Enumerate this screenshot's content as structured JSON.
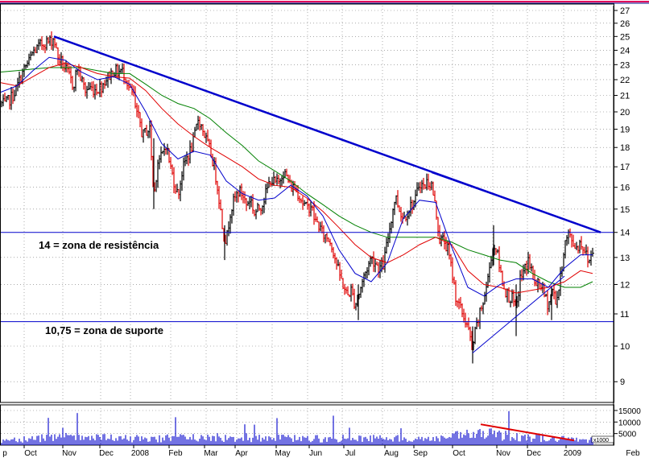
{
  "chart_data": {
    "type": "candlestick",
    "price_scale": {
      "min": 9,
      "max": 27,
      "scale": "log",
      "ticks": [
        9,
        10,
        11,
        12,
        13,
        14,
        15,
        16,
        17,
        18,
        19,
        20,
        21,
        22,
        23,
        24,
        25,
        26,
        27
      ]
    },
    "volume_scale": {
      "ticks": [
        15000,
        10000,
        5000
      ],
      "tick_labels": [
        "15000",
        "10000",
        "5000"
      ],
      "unit_label": "x1000"
    },
    "x_labels": [
      "p",
      "Oct",
      "Nov",
      "Dec",
      "2008",
      "Feb",
      "Mar",
      "Apr",
      "May",
      "Jun",
      "Jul",
      "Aug",
      "Sep",
      "Oct",
      "Nov",
      "Dec",
      "2009",
      "Feb"
    ],
    "grid": true,
    "series": {
      "price": [
        [
          0,
          20.5
        ],
        [
          5,
          20.4
        ],
        [
          10,
          20.7
        ],
        [
          15,
          21.0
        ],
        [
          20,
          21.5
        ],
        [
          25,
          22.2
        ],
        [
          30,
          22.8
        ],
        [
          35,
          23.2
        ],
        [
          40,
          23.9
        ],
        [
          45,
          24.1
        ],
        [
          50,
          24.4
        ],
        [
          55,
          24.6
        ],
        [
          60,
          24.6
        ],
        [
          66,
          24.9
        ],
        [
          70,
          23.6
        ],
        [
          75,
          23.2
        ],
        [
          80,
          22.7
        ],
        [
          85,
          22.2
        ],
        [
          90,
          21.6
        ],
        [
          95,
          22.8
        ],
        [
          100,
          22.0
        ],
        [
          105,
          21.3
        ],
        [
          110,
          21.5
        ],
        [
          115,
          21.4
        ],
        [
          120,
          21.4
        ],
        [
          125,
          21.6
        ],
        [
          130,
          22.0
        ],
        [
          135,
          22.3
        ],
        [
          140,
          22.6
        ],
        [
          145,
          22.5
        ],
        [
          150,
          22.6
        ],
        [
          155,
          22.2
        ],
        [
          160,
          21.3
        ],
        [
          165,
          21.0
        ],
        [
          168,
          19.8
        ],
        [
          172,
          19.6
        ],
        [
          176,
          18.6
        ],
        [
          180,
          18.9
        ],
        [
          185,
          19.0
        ],
        [
          190,
          15.5
        ],
        [
          195,
          17.3
        ],
        [
          200,
          17.5
        ],
        [
          205,
          18.2
        ],
        [
          210,
          17.1
        ],
        [
          215,
          16.3
        ],
        [
          220,
          15.6
        ],
        [
          225,
          16.7
        ],
        [
          230,
          17.4
        ],
        [
          235,
          17.8
        ],
        [
          240,
          18.4
        ],
        [
          245,
          19.6
        ],
        [
          250,
          19.1
        ],
        [
          255,
          18.4
        ],
        [
          260,
          17.8
        ],
        [
          265,
          17.0
        ],
        [
          270,
          15.8
        ],
        [
          275,
          14.3
        ],
        [
          280,
          13.6
        ],
        [
          285,
          14.9
        ],
        [
          290,
          15.4
        ],
        [
          295,
          15.8
        ],
        [
          300,
          15.7
        ],
        [
          305,
          15.2
        ],
        [
          310,
          15.5
        ],
        [
          315,
          14.8
        ],
        [
          320,
          15.0
        ],
        [
          325,
          15.3
        ],
        [
          330,
          15.8
        ],
        [
          335,
          16.4
        ],
        [
          340,
          16.2
        ],
        [
          345,
          16.2
        ],
        [
          350,
          16.8
        ],
        [
          355,
          16.5
        ],
        [
          360,
          16.0
        ],
        [
          365,
          16.0
        ],
        [
          370,
          15.7
        ],
        [
          375,
          15.3
        ],
        [
          380,
          15.0
        ],
        [
          385,
          15.2
        ],
        [
          390,
          14.5
        ],
        [
          395,
          14.3
        ],
        [
          400,
          13.9
        ],
        [
          405,
          13.8
        ],
        [
          410,
          13.6
        ],
        [
          415,
          13.0
        ],
        [
          420,
          12.4
        ],
        [
          425,
          12.0
        ],
        [
          430,
          11.6
        ],
        [
          435,
          11.8
        ],
        [
          440,
          11.3
        ],
        [
          445,
          11.7
        ],
        [
          450,
          12.2
        ],
        [
          455,
          12.6
        ],
        [
          460,
          13.0
        ],
        [
          465,
          12.8
        ],
        [
          470,
          12.6
        ],
        [
          475,
          12.7
        ],
        [
          480,
          13.6
        ],
        [
          485,
          14.6
        ],
        [
          490,
          15.6
        ],
        [
          495,
          15.0
        ],
        [
          500,
          14.6
        ],
        [
          505,
          14.9
        ],
        [
          510,
          15.2
        ],
        [
          515,
          15.4
        ],
        [
          520,
          16.3
        ],
        [
          525,
          16.0
        ],
        [
          530,
          16.3
        ],
        [
          535,
          16.1
        ],
        [
          540,
          15.0
        ],
        [
          545,
          13.7
        ],
        [
          550,
          13.7
        ],
        [
          555,
          13.3
        ],
        [
          560,
          12.5
        ],
        [
          565,
          11.6
        ],
        [
          570,
          11.2
        ],
        [
          575,
          10.9
        ],
        [
          580,
          10.6
        ],
        [
          585,
          9.9
        ],
        [
          590,
          10.5
        ],
        [
          595,
          11.0
        ],
        [
          600,
          11.5
        ],
        [
          605,
          12.2
        ],
        [
          610,
          13.3
        ],
        [
          615,
          13.4
        ],
        [
          620,
          12.5
        ],
        [
          625,
          11.9
        ],
        [
          630,
          11.6
        ],
        [
          635,
          11.5
        ],
        [
          640,
          11.1
        ],
        [
          645,
          12.2
        ],
        [
          650,
          12.5
        ],
        [
          655,
          12.9
        ],
        [
          660,
          12.4
        ],
        [
          665,
          11.9
        ],
        [
          670,
          12.1
        ],
        [
          675,
          11.6
        ],
        [
          680,
          11.3
        ],
        [
          685,
          11.8
        ],
        [
          690,
          11.4
        ],
        [
          695,
          12.2
        ],
        [
          700,
          13.5
        ],
        [
          705,
          13.9
        ],
        [
          710,
          13.6
        ],
        [
          715,
          13.4
        ],
        [
          720,
          13.6
        ],
        [
          725,
          13.3
        ],
        [
          730,
          12.8
        ],
        [
          735,
          13.3
        ]
      ],
      "sma_blue": [
        [
          0,
          21.2
        ],
        [
          20,
          21.6
        ],
        [
          40,
          22.6
        ],
        [
          60,
          23.5
        ],
        [
          80,
          23.3
        ],
        [
          100,
          22.5
        ],
        [
          120,
          22.0
        ],
        [
          140,
          22.2
        ],
        [
          160,
          21.7
        ],
        [
          180,
          20.0
        ],
        [
          200,
          18.2
        ],
        [
          220,
          17.4
        ],
        [
          240,
          17.8
        ],
        [
          260,
          17.6
        ],
        [
          280,
          16.3
        ],
        [
          300,
          15.7
        ],
        [
          320,
          15.4
        ],
        [
          340,
          15.5
        ],
        [
          360,
          16.1
        ],
        [
          380,
          15.6
        ],
        [
          400,
          14.7
        ],
        [
          420,
          13.3
        ],
        [
          440,
          12.4
        ],
        [
          460,
          12.1
        ],
        [
          480,
          12.8
        ],
        [
          500,
          14.6
        ],
        [
          520,
          15.4
        ],
        [
          540,
          15.3
        ],
        [
          560,
          13.4
        ],
        [
          580,
          11.9
        ],
        [
          600,
          11.6
        ],
        [
          620,
          12.0
        ],
        [
          640,
          12.2
        ],
        [
          660,
          12.2
        ],
        [
          680,
          11.9
        ],
        [
          700,
          12.6
        ],
        [
          720,
          13.1
        ],
        [
          735,
          13.1
        ]
      ],
      "sma_red": [
        [
          0,
          21.8
        ],
        [
          20,
          21.6
        ],
        [
          40,
          22.2
        ],
        [
          60,
          22.8
        ],
        [
          80,
          23.1
        ],
        [
          100,
          22.8
        ],
        [
          120,
          22.4
        ],
        [
          140,
          22.2
        ],
        [
          160,
          22.1
        ],
        [
          180,
          21.3
        ],
        [
          200,
          20.2
        ],
        [
          220,
          19.3
        ],
        [
          240,
          18.6
        ],
        [
          260,
          18.0
        ],
        [
          280,
          17.5
        ],
        [
          300,
          17.0
        ],
        [
          320,
          16.4
        ],
        [
          340,
          16.1
        ],
        [
          360,
          16.0
        ],
        [
          380,
          15.5
        ],
        [
          400,
          14.9
        ],
        [
          420,
          14.2
        ],
        [
          440,
          13.5
        ],
        [
          460,
          13.0
        ],
        [
          480,
          12.8
        ],
        [
          500,
          13.1
        ],
        [
          520,
          13.5
        ],
        [
          540,
          13.8
        ],
        [
          560,
          13.5
        ],
        [
          580,
          12.5
        ],
        [
          600,
          12.0
        ],
        [
          620,
          11.9
        ],
        [
          640,
          11.7
        ],
        [
          660,
          11.8
        ],
        [
          680,
          11.9
        ],
        [
          700,
          12.1
        ],
        [
          720,
          12.5
        ],
        [
          735,
          12.4
        ]
      ],
      "sma_green": [
        [
          0,
          22.5
        ],
        [
          20,
          22.6
        ],
        [
          40,
          22.7
        ],
        [
          60,
          22.8
        ],
        [
          80,
          22.8
        ],
        [
          100,
          22.8
        ],
        [
          120,
          22.6
        ],
        [
          140,
          22.4
        ],
        [
          160,
          22.4
        ],
        [
          180,
          21.7
        ],
        [
          200,
          21.0
        ],
        [
          220,
          20.5
        ],
        [
          240,
          20.2
        ],
        [
          260,
          19.6
        ],
        [
          280,
          18.8
        ],
        [
          300,
          18.1
        ],
        [
          320,
          17.3
        ],
        [
          340,
          16.8
        ],
        [
          360,
          16.3
        ],
        [
          380,
          15.7
        ],
        [
          400,
          15.2
        ],
        [
          420,
          14.7
        ],
        [
          440,
          14.3
        ],
        [
          460,
          14.0
        ],
        [
          480,
          13.8
        ],
        [
          500,
          13.8
        ],
        [
          520,
          13.8
        ],
        [
          540,
          13.8
        ],
        [
          560,
          13.6
        ],
        [
          580,
          13.3
        ],
        [
          600,
          13.1
        ],
        [
          620,
          12.9
        ],
        [
          640,
          12.8
        ],
        [
          660,
          12.4
        ],
        [
          680,
          12.1
        ],
        [
          700,
          11.9
        ],
        [
          720,
          11.9
        ],
        [
          735,
          12.1
        ]
      ],
      "volume_profile": [
        [
          0,
          2200
        ],
        [
          60,
          3500
        ],
        [
          160,
          2800
        ],
        [
          250,
          3200
        ],
        [
          300,
          3300
        ],
        [
          400,
          2700
        ],
        [
          470,
          3000
        ],
        [
          540,
          2700
        ],
        [
          590,
          4800
        ],
        [
          640,
          4100
        ],
        [
          690,
          2600
        ],
        [
          735,
          2400
        ]
      ]
    },
    "trendlines": {
      "resistance_diagonal": [
        [
          66,
          25.0
        ],
        [
          745,
          14.0
        ]
      ],
      "resistance_horizontal": 14.0,
      "support_horizontal": 10.75,
      "mid_diagonal": [
        [
          535,
          16.7
        ],
        [
          745,
          14.0
        ]
      ],
      "lower_diagonal": [
        [
          586,
          9.8
        ],
        [
          700,
          12.3
        ]
      ],
      "volume_trend": [
        [
          596,
          9000
        ],
        [
          712,
          2000
        ]
      ]
    },
    "annotations": [
      "14 = zona de resistência",
      "10,75 = zona de suporte"
    ]
  }
}
